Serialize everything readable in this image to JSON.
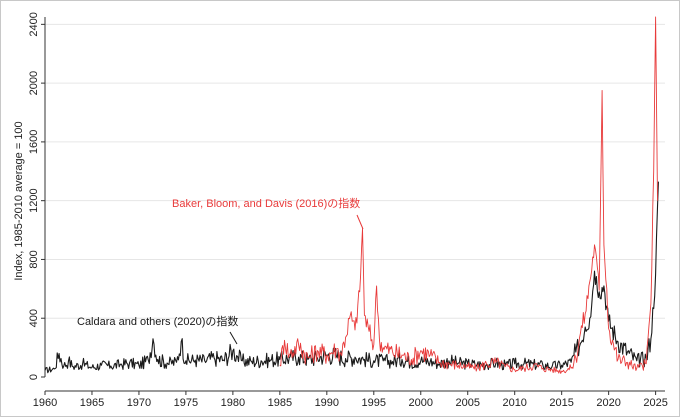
{
  "chart_data": {
    "type": "line",
    "title": "",
    "xlabel": "",
    "ylabel": "Index, 1985-2010 average = 100",
    "xlim": [
      1960,
      2026
    ],
    "ylim": [
      0,
      2450
    ],
    "x_ticks": [
      1960,
      1965,
      1970,
      1975,
      1980,
      1985,
      1990,
      1995,
      2000,
      2005,
      2010,
      2015,
      2020,
      2025
    ],
    "x_tick_labels": [
      "1960",
      "1965",
      "1970",
      "1975",
      "1980",
      "1985",
      "1990",
      "1995",
      "2000",
      "2005",
      "2010",
      "2015",
      "2020",
      "2025"
    ],
    "y_ticks": [
      0,
      400,
      800,
      1200,
      1600,
      2000,
      2400
    ],
    "y_tick_labels": [
      "0",
      "400",
      "800",
      "1200",
      "1600",
      "2000",
      "2400"
    ],
    "grid": true,
    "legend": "none",
    "series": [
      {
        "color": "#1a1a1a",
        "x": [
          1960,
          1961,
          1961.5,
          1962,
          1962.5,
          1963,
          1964,
          1965,
          1966,
          1967,
          1968,
          1969,
          1970,
          1971,
          1971.5,
          1972,
          1973,
          1974,
          1974.5,
          1975,
          1976,
          1977,
          1978,
          1979,
          1980,
          1980.5,
          1981,
          1982,
          1983,
          1984,
          1985,
          1986,
          1987,
          1988,
          1989,
          1990,
          1991,
          1992,
          1993,
          1994,
          1995,
          1996,
          1997,
          1998,
          1999,
          2000,
          2001,
          2002,
          2003,
          2004,
          2005,
          2006,
          2007,
          2008,
          2009,
          2010,
          2011,
          2012,
          2013,
          2014,
          2015,
          2016,
          2016.5,
          2017,
          2017.5,
          2018,
          2018.5,
          2019,
          2019.5,
          2020,
          2021,
          2022,
          2023,
          2024,
          2024.5,
          2025,
          2025.3
        ],
        "values": [
          45,
          55,
          160,
          75,
          110,
          70,
          90,
          65,
          80,
          75,
          85,
          95,
          80,
          115,
          260,
          120,
          95,
          100,
          240,
          110,
          115,
          110,
          130,
          115,
          180,
          140,
          110,
          105,
          110,
          115,
          120,
          130,
          135,
          120,
          130,
          150,
          145,
          125,
          135,
          120,
          110,
          110,
          105,
          120,
          100,
          110,
          105,
          90,
          110,
          95,
          90,
          85,
          85,
          95,
          80,
          90,
          90,
          85,
          80,
          75,
          80,
          100,
          170,
          230,
          340,
          400,
          720,
          580,
          620,
          380,
          240,
          170,
          110,
          130,
          260,
          700,
          1330
        ]
      },
      {
        "color": "#e83a3a",
        "x": [
          1985,
          1985.5,
          1986,
          1987,
          1988,
          1989,
          1990,
          1991,
          1991.5,
          1992,
          1992.5,
          1993,
          1993.5,
          1993.8,
          1994,
          1994.5,
          1995,
          1995.3,
          1995.6,
          1996,
          1997,
          1998,
          1999,
          2000,
          2001,
          2002,
          2003,
          2004,
          2005,
          2006,
          2007,
          2008,
          2009,
          2010,
          2011,
          2012,
          2013,
          2014,
          2015,
          2016,
          2016.5,
          2017,
          2017.5,
          2018,
          2018.5,
          2019,
          2019.3,
          2019.5,
          2019.8,
          2020,
          2020.5,
          2021,
          2022,
          2023,
          2024,
          2024.5,
          2024.8,
          2025,
          2025.2
        ],
        "values": [
          80,
          250,
          150,
          220,
          130,
          180,
          150,
          190,
          160,
          270,
          420,
          320,
          580,
          1010,
          420,
          310,
          220,
          620,
          260,
          200,
          170,
          150,
          120,
          180,
          150,
          100,
          90,
          80,
          70,
          60,
          90,
          100,
          70,
          50,
          60,
          80,
          60,
          50,
          40,
          60,
          130,
          300,
          430,
          650,
          900,
          590,
          1950,
          900,
          600,
          330,
          230,
          120,
          100,
          60,
          90,
          500,
          1400,
          2450,
          1200
        ]
      }
    ],
    "annotations": [
      {
        "text": "Baker, Bloom, and Davis (2016)の指数",
        "color": "#e83a3a"
      },
      {
        "text": "Caldara and others (2020)の指数",
        "color": "#1a1a1a"
      }
    ]
  }
}
